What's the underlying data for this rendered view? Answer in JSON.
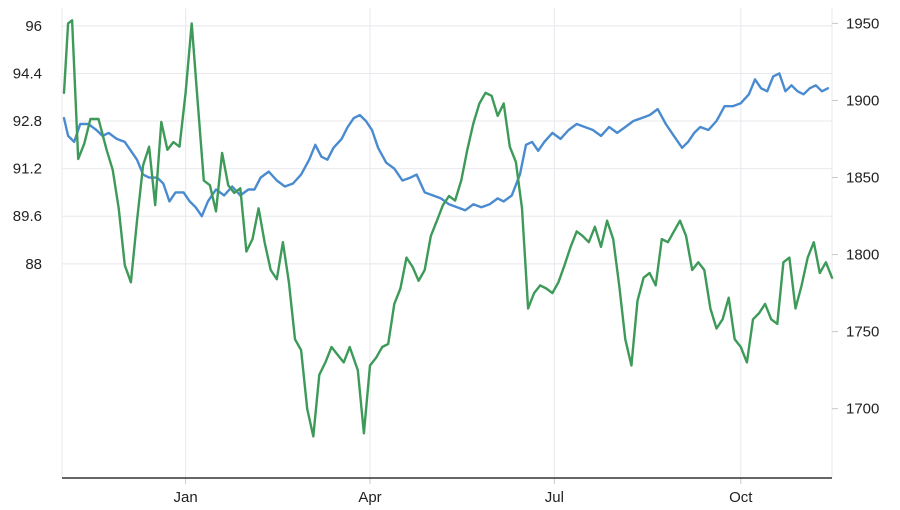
{
  "chart_data": {
    "type": "line",
    "title": "",
    "xlabel": "",
    "ylabel": "",
    "grid": true,
    "legend": "none",
    "x_range": [
      "2023-11-01",
      "2024-11-15"
    ],
    "x_tick_labels": [
      {
        "label": "Jan",
        "date": "2024-01-01"
      },
      {
        "label": "Apr",
        "date": "2024-04-01"
      },
      {
        "label": "Jul",
        "date": "2024-07-01"
      },
      {
        "label": "Oct",
        "date": "2024-10-01"
      }
    ],
    "y_left": {
      "range": [
        80.8,
        96.6
      ],
      "ticks": [
        96,
        94.4,
        92.8,
        91.2,
        89.6,
        88
      ],
      "tick_labels": [
        "96",
        "94.4",
        "92.8",
        "91.2",
        "89.6",
        "88"
      ]
    },
    "y_right": {
      "range": [
        1655,
        1960
      ],
      "ticks": [
        1950,
        1900,
        1850,
        1800,
        1750,
        1700
      ],
      "tick_labels": [
        "1950",
        "1900",
        "1850",
        "1800",
        "1750",
        "1700"
      ]
    },
    "series": [
      {
        "axis": "left",
        "color": "#4a8bd0",
        "points": [
          [
            "2023-11-02",
            92.9
          ],
          [
            "2023-11-04",
            92.3
          ],
          [
            "2023-11-07",
            92.1
          ],
          [
            "2023-11-10",
            92.7
          ],
          [
            "2023-11-14",
            92.7
          ],
          [
            "2023-11-18",
            92.5
          ],
          [
            "2023-11-21",
            92.3
          ],
          [
            "2023-11-24",
            92.4
          ],
          [
            "2023-11-28",
            92.2
          ],
          [
            "2023-12-02",
            92.1
          ],
          [
            "2023-12-05",
            91.8
          ],
          [
            "2023-12-08",
            91.5
          ],
          [
            "2023-12-11",
            91.0
          ],
          [
            "2023-12-14",
            90.9
          ],
          [
            "2023-12-18",
            90.9
          ],
          [
            "2023-12-21",
            90.7
          ],
          [
            "2023-12-24",
            90.1
          ],
          [
            "2023-12-27",
            90.4
          ],
          [
            "2023-12-31",
            90.4
          ],
          [
            "2024-01-03",
            90.1
          ],
          [
            "2024-01-06",
            89.9
          ],
          [
            "2024-01-09",
            89.6
          ],
          [
            "2024-01-12",
            90.1
          ],
          [
            "2024-01-16",
            90.5
          ],
          [
            "2024-01-20",
            90.3
          ],
          [
            "2024-01-24",
            90.6
          ],
          [
            "2024-01-28",
            90.3
          ],
          [
            "2024-02-01",
            90.5
          ],
          [
            "2024-02-04",
            90.5
          ],
          [
            "2024-02-07",
            90.9
          ],
          [
            "2024-02-11",
            91.1
          ],
          [
            "2024-02-15",
            90.8
          ],
          [
            "2024-02-19",
            90.6
          ],
          [
            "2024-02-23",
            90.7
          ],
          [
            "2024-02-27",
            91.0
          ],
          [
            "2024-03-02",
            91.5
          ],
          [
            "2024-03-05",
            92.0
          ],
          [
            "2024-03-08",
            91.6
          ],
          [
            "2024-03-11",
            91.5
          ],
          [
            "2024-03-14",
            91.9
          ],
          [
            "2024-03-18",
            92.2
          ],
          [
            "2024-03-21",
            92.6
          ],
          [
            "2024-03-24",
            92.9
          ],
          [
            "2024-03-27",
            93.0
          ],
          [
            "2024-03-30",
            92.8
          ],
          [
            "2024-04-02",
            92.5
          ],
          [
            "2024-04-05",
            91.9
          ],
          [
            "2024-04-09",
            91.4
          ],
          [
            "2024-04-13",
            91.2
          ],
          [
            "2024-04-17",
            90.8
          ],
          [
            "2024-04-21",
            90.9
          ],
          [
            "2024-04-24",
            91.0
          ],
          [
            "2024-04-28",
            90.4
          ],
          [
            "2024-05-02",
            90.3
          ],
          [
            "2024-05-06",
            90.2
          ],
          [
            "2024-05-10",
            90.0
          ],
          [
            "2024-05-14",
            89.9
          ],
          [
            "2024-05-18",
            89.8
          ],
          [
            "2024-05-22",
            90.0
          ],
          [
            "2024-05-26",
            89.9
          ],
          [
            "2024-05-30",
            90.0
          ],
          [
            "2024-06-03",
            90.2
          ],
          [
            "2024-06-06",
            90.1
          ],
          [
            "2024-06-10",
            90.3
          ],
          [
            "2024-06-14",
            91.0
          ],
          [
            "2024-06-17",
            92.0
          ],
          [
            "2024-06-20",
            92.1
          ],
          [
            "2024-06-23",
            91.8
          ],
          [
            "2024-06-26",
            92.1
          ],
          [
            "2024-06-30",
            92.4
          ],
          [
            "2024-07-04",
            92.2
          ],
          [
            "2024-07-08",
            92.5
          ],
          [
            "2024-07-12",
            92.7
          ],
          [
            "2024-07-16",
            92.6
          ],
          [
            "2024-07-20",
            92.5
          ],
          [
            "2024-07-24",
            92.3
          ],
          [
            "2024-07-28",
            92.6
          ],
          [
            "2024-08-01",
            92.4
          ],
          [
            "2024-08-05",
            92.6
          ],
          [
            "2024-08-09",
            92.8
          ],
          [
            "2024-08-13",
            92.9
          ],
          [
            "2024-08-17",
            93.0
          ],
          [
            "2024-08-21",
            93.2
          ],
          [
            "2024-08-25",
            92.7
          ],
          [
            "2024-08-29",
            92.3
          ],
          [
            "2024-09-02",
            91.9
          ],
          [
            "2024-09-05",
            92.1
          ],
          [
            "2024-09-08",
            92.4
          ],
          [
            "2024-09-11",
            92.6
          ],
          [
            "2024-09-15",
            92.5
          ],
          [
            "2024-09-19",
            92.8
          ],
          [
            "2024-09-23",
            93.3
          ],
          [
            "2024-09-27",
            93.3
          ],
          [
            "2024-10-01",
            93.4
          ],
          [
            "2024-10-05",
            93.7
          ],
          [
            "2024-10-08",
            94.2
          ],
          [
            "2024-10-11",
            93.9
          ],
          [
            "2024-10-14",
            93.8
          ],
          [
            "2024-10-17",
            94.3
          ],
          [
            "2024-10-20",
            94.4
          ],
          [
            "2024-10-23",
            93.8
          ],
          [
            "2024-10-26",
            94.0
          ],
          [
            "2024-10-29",
            93.8
          ],
          [
            "2024-11-01",
            93.7
          ],
          [
            "2024-11-04",
            93.9
          ],
          [
            "2024-11-07",
            94.0
          ],
          [
            "2024-11-10",
            93.8
          ],
          [
            "2024-11-13",
            93.9
          ]
        ]
      },
      {
        "axis": "right",
        "color": "#3d9a58",
        "points": [
          [
            "2023-11-02",
            1905
          ],
          [
            "2023-11-04",
            1950
          ],
          [
            "2023-11-06",
            1952
          ],
          [
            "2023-11-09",
            1862
          ],
          [
            "2023-11-12",
            1872
          ],
          [
            "2023-11-15",
            1888
          ],
          [
            "2023-11-19",
            1888
          ],
          [
            "2023-11-23",
            1868
          ],
          [
            "2023-11-26",
            1855
          ],
          [
            "2023-11-29",
            1830
          ],
          [
            "2023-12-02",
            1793
          ],
          [
            "2023-12-05",
            1782
          ],
          [
            "2023-12-08",
            1822
          ],
          [
            "2023-12-11",
            1858
          ],
          [
            "2023-12-14",
            1870
          ],
          [
            "2023-12-17",
            1832
          ],
          [
            "2023-12-20",
            1886
          ],
          [
            "2023-12-23",
            1868
          ],
          [
            "2023-12-26",
            1873
          ],
          [
            "2023-12-29",
            1870
          ],
          [
            "2024-01-01",
            1905
          ],
          [
            "2024-01-04",
            1950
          ],
          [
            "2024-01-07",
            1898
          ],
          [
            "2024-01-10",
            1848
          ],
          [
            "2024-01-13",
            1845
          ],
          [
            "2024-01-16",
            1828
          ],
          [
            "2024-01-19",
            1866
          ],
          [
            "2024-01-22",
            1845
          ],
          [
            "2024-01-25",
            1840
          ],
          [
            "2024-01-28",
            1843
          ],
          [
            "2024-01-31",
            1802
          ],
          [
            "2024-02-03",
            1810
          ],
          [
            "2024-02-06",
            1830
          ],
          [
            "2024-02-09",
            1808
          ],
          [
            "2024-02-12",
            1790
          ],
          [
            "2024-02-15",
            1784
          ],
          [
            "2024-02-18",
            1808
          ],
          [
            "2024-02-21",
            1782
          ],
          [
            "2024-02-24",
            1745
          ],
          [
            "2024-02-27",
            1738
          ],
          [
            "2024-03-01",
            1700
          ],
          [
            "2024-03-04",
            1682
          ],
          [
            "2024-03-07",
            1722
          ],
          [
            "2024-03-10",
            1730
          ],
          [
            "2024-03-13",
            1740
          ],
          [
            "2024-03-16",
            1735
          ],
          [
            "2024-03-19",
            1730
          ],
          [
            "2024-03-22",
            1740
          ],
          [
            "2024-03-26",
            1725
          ],
          [
            "2024-03-29",
            1684
          ],
          [
            "2024-04-01",
            1728
          ],
          [
            "2024-04-04",
            1733
          ],
          [
            "2024-04-07",
            1740
          ],
          [
            "2024-04-10",
            1742
          ],
          [
            "2024-04-13",
            1768
          ],
          [
            "2024-04-16",
            1778
          ],
          [
            "2024-04-19",
            1798
          ],
          [
            "2024-04-22",
            1792
          ],
          [
            "2024-04-25",
            1783
          ],
          [
            "2024-04-28",
            1790
          ],
          [
            "2024-05-01",
            1812
          ],
          [
            "2024-05-04",
            1822
          ],
          [
            "2024-05-07",
            1832
          ],
          [
            "2024-05-10",
            1838
          ],
          [
            "2024-05-13",
            1835
          ],
          [
            "2024-05-16",
            1848
          ],
          [
            "2024-05-19",
            1868
          ],
          [
            "2024-05-22",
            1885
          ],
          [
            "2024-05-25",
            1898
          ],
          [
            "2024-05-28",
            1905
          ],
          [
            "2024-05-31",
            1903
          ],
          [
            "2024-06-03",
            1890
          ],
          [
            "2024-06-06",
            1898
          ],
          [
            "2024-06-09",
            1870
          ],
          [
            "2024-06-12",
            1860
          ],
          [
            "2024-06-15",
            1830
          ],
          [
            "2024-06-18",
            1765
          ],
          [
            "2024-06-21",
            1775
          ],
          [
            "2024-06-24",
            1780
          ],
          [
            "2024-06-27",
            1778
          ],
          [
            "2024-06-30",
            1775
          ],
          [
            "2024-07-03",
            1782
          ],
          [
            "2024-07-06",
            1793
          ],
          [
            "2024-07-09",
            1805
          ],
          [
            "2024-07-12",
            1815
          ],
          [
            "2024-07-15",
            1812
          ],
          [
            "2024-07-18",
            1808
          ],
          [
            "2024-07-21",
            1818
          ],
          [
            "2024-07-24",
            1805
          ],
          [
            "2024-07-27",
            1822
          ],
          [
            "2024-07-30",
            1810
          ],
          [
            "2024-08-02",
            1780
          ],
          [
            "2024-08-05",
            1745
          ],
          [
            "2024-08-08",
            1728
          ],
          [
            "2024-08-11",
            1770
          ],
          [
            "2024-08-14",
            1785
          ],
          [
            "2024-08-17",
            1788
          ],
          [
            "2024-08-20",
            1780
          ],
          [
            "2024-08-23",
            1810
          ],
          [
            "2024-08-26",
            1808
          ],
          [
            "2024-08-29",
            1815
          ],
          [
            "2024-09-01",
            1822
          ],
          [
            "2024-09-04",
            1812
          ],
          [
            "2024-09-07",
            1790
          ],
          [
            "2024-09-10",
            1795
          ],
          [
            "2024-09-13",
            1790
          ],
          [
            "2024-09-16",
            1765
          ],
          [
            "2024-09-19",
            1752
          ],
          [
            "2024-09-22",
            1758
          ],
          [
            "2024-09-25",
            1772
          ],
          [
            "2024-09-28",
            1745
          ],
          [
            "2024-10-01",
            1740
          ],
          [
            "2024-10-04",
            1730
          ],
          [
            "2024-10-07",
            1758
          ],
          [
            "2024-10-10",
            1762
          ],
          [
            "2024-10-13",
            1768
          ],
          [
            "2024-10-16",
            1758
          ],
          [
            "2024-10-19",
            1755
          ],
          [
            "2024-10-22",
            1795
          ],
          [
            "2024-10-25",
            1798
          ],
          [
            "2024-10-28",
            1765
          ],
          [
            "2024-10-31",
            1780
          ],
          [
            "2024-11-03",
            1798
          ],
          [
            "2024-11-06",
            1808
          ],
          [
            "2024-11-09",
            1788
          ],
          [
            "2024-11-12",
            1795
          ],
          [
            "2024-11-15",
            1785
          ]
        ]
      }
    ]
  }
}
